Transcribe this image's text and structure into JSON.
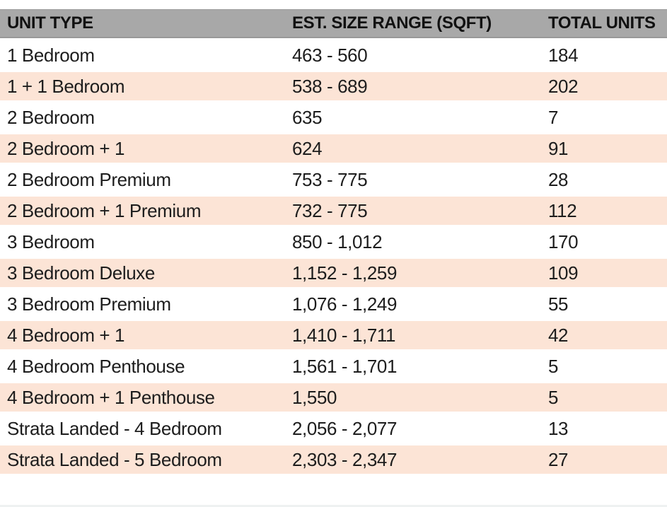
{
  "colors": {
    "header_bg": "#a8a8a8",
    "row_alt_bg": "#fce4d6",
    "text": "#1d1d1d"
  },
  "chart_data": {
    "type": "table",
    "title": "",
    "columns": [
      "UNIT TYPE",
      "EST. SIZE RANGE (SQFT)",
      "TOTAL UNITS"
    ],
    "rows": [
      {
        "unit_type": "1 Bedroom",
        "size_range_sqft": "463 - 560",
        "total_units": "184"
      },
      {
        "unit_type": "1 + 1 Bedroom",
        "size_range_sqft": "538 - 689",
        "total_units": "202"
      },
      {
        "unit_type": "2 Bedroom",
        "size_range_sqft": "635",
        "total_units": "7"
      },
      {
        "unit_type": "2 Bedroom + 1",
        "size_range_sqft": "624",
        "total_units": "91"
      },
      {
        "unit_type": "2 Bedroom Premium",
        "size_range_sqft": "753 - 775",
        "total_units": "28"
      },
      {
        "unit_type": "2 Bedroom + 1 Premium",
        "size_range_sqft": "732 - 775",
        "total_units": "112"
      },
      {
        "unit_type": "3 Bedroom",
        "size_range_sqft": "850 - 1,012",
        "total_units": "170"
      },
      {
        "unit_type": "3 Bedroom Deluxe",
        "size_range_sqft": "1,152 - 1,259",
        "total_units": "109"
      },
      {
        "unit_type": "3 Bedroom Premium",
        "size_range_sqft": "1,076 - 1,249",
        "total_units": "55"
      },
      {
        "unit_type": "4 Bedroom + 1",
        "size_range_sqft": "1,410 - 1,711",
        "total_units": "42"
      },
      {
        "unit_type": "4 Bedroom Penthouse",
        "size_range_sqft": "1,561 - 1,701",
        "total_units": "5"
      },
      {
        "unit_type": "4 Bedroom + 1 Penthouse",
        "size_range_sqft": "1,550",
        "total_units": "5"
      },
      {
        "unit_type": "Strata Landed - 4 Bedroom",
        "size_range_sqft": "2,056 - 2,077",
        "total_units": "13"
      },
      {
        "unit_type": "Strata Landed - 5 Bedroom",
        "size_range_sqft": "2,303 - 2,347",
        "total_units": "27"
      }
    ]
  }
}
